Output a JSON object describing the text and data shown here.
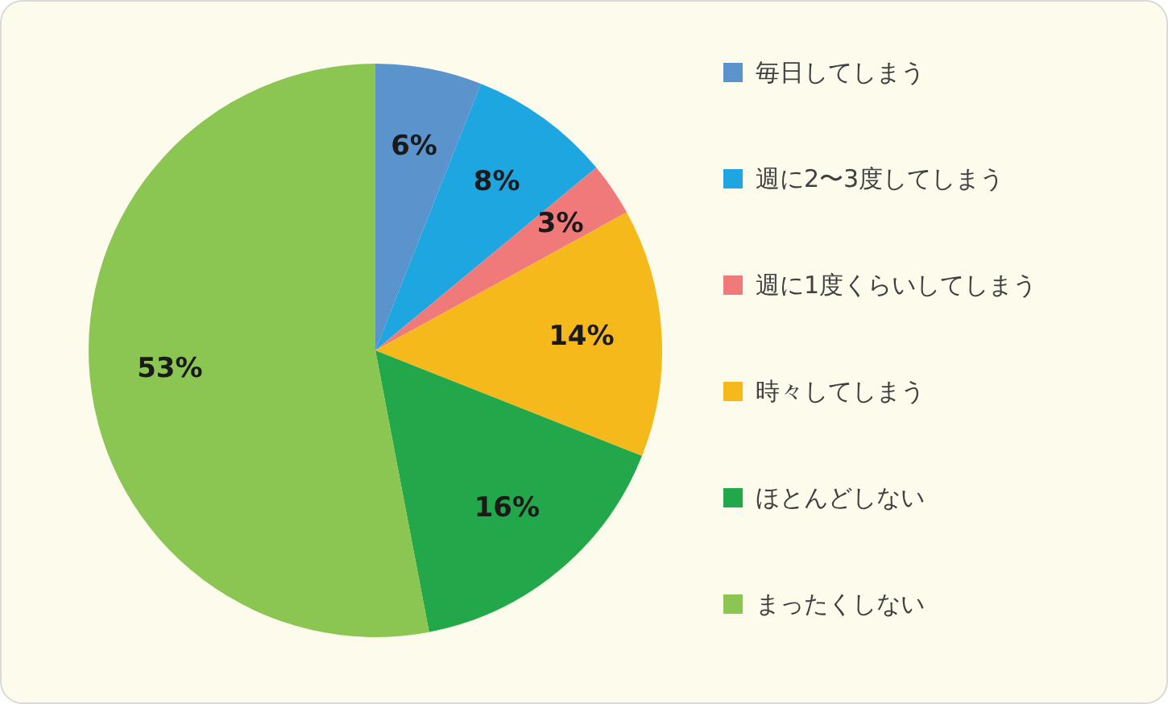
{
  "chart_data": {
    "type": "pie",
    "categories": [
      "毎日してしまう",
      "週に2〜3度してしまう",
      "週に1度くらいしてしまう",
      "時々してしまう",
      "ほとんどしない",
      "まったくしない"
    ],
    "values": [
      6,
      8,
      3,
      14,
      16,
      53
    ],
    "colors": [
      "#5b93cc",
      "#1ea6e0",
      "#f07a7a",
      "#f5b91c",
      "#22a84a",
      "#8cc652"
    ],
    "value_labels": [
      "6%",
      "8%",
      "3%",
      "14%",
      "16%",
      "53%"
    ],
    "legend": "right"
  }
}
